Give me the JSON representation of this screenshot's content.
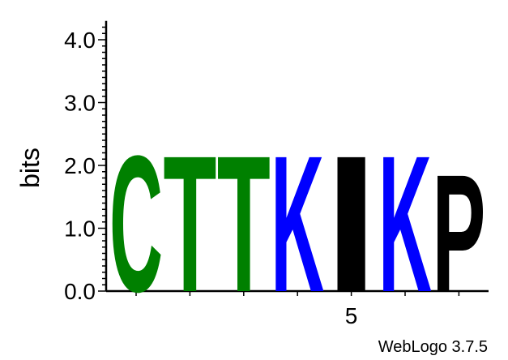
{
  "chart_data": {
    "type": "sequence-logo",
    "ylabel": "bits",
    "ylim": [
      0,
      4.3
    ],
    "yticks": [
      "0.0",
      "1.0",
      "2.0",
      "3.0",
      "4.0"
    ],
    "xticks_labeled": [
      {
        "position": 5,
        "label": "5"
      }
    ],
    "positions": [
      {
        "position": 1,
        "letter": "C",
        "bits": 2.23,
        "color": "#008000"
      },
      {
        "position": 2,
        "letter": "T",
        "bits": 2.23,
        "color": "#008000"
      },
      {
        "position": 3,
        "letter": "T",
        "bits": 2.23,
        "color": "#008000"
      },
      {
        "position": 4,
        "letter": "K",
        "bits": 2.23,
        "color": "#0000ff"
      },
      {
        "position": 5,
        "letter": "I",
        "bits": 2.23,
        "color": "#000000"
      },
      {
        "position": 6,
        "letter": "K",
        "bits": 2.23,
        "color": "#0000ff"
      },
      {
        "position": 7,
        "letter": "P",
        "bits": 1.92,
        "color": "#000000"
      }
    ]
  },
  "credit": "WebLogo 3.7.5"
}
